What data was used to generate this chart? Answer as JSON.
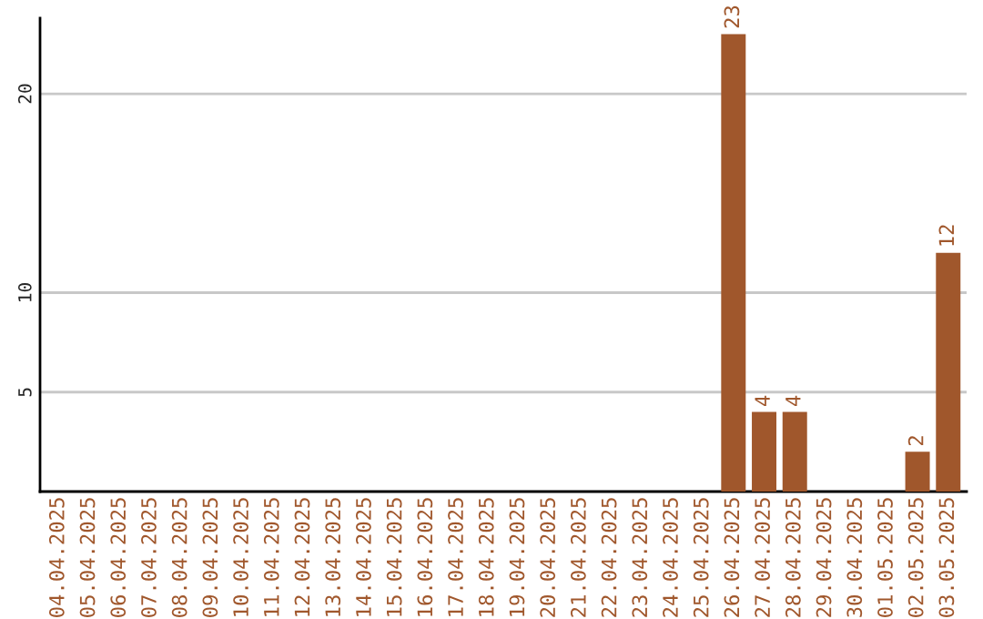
{
  "chart_data": {
    "type": "bar",
    "categories": [
      "04.04.2025",
      "05.04.2025",
      "06.04.2025",
      "07.04.2025",
      "08.04.2025",
      "09.04.2025",
      "10.04.2025",
      "11.04.2025",
      "12.04.2025",
      "13.04.2025",
      "14.04.2025",
      "15.04.2025",
      "16.04.2025",
      "17.04.2025",
      "18.04.2025",
      "19.04.2025",
      "20.04.2025",
      "21.04.2025",
      "22.04.2025",
      "23.04.2025",
      "24.04.2025",
      "25.04.2025",
      "26.04.2025",
      "27.04.2025",
      "28.04.2025",
      "29.04.2025",
      "30.04.2025",
      "01.05.2025",
      "02.05.2025",
      "03.05.2025"
    ],
    "values": [
      0,
      0,
      0,
      0,
      0,
      0,
      0,
      0,
      0,
      0,
      0,
      0,
      0,
      0,
      0,
      0,
      0,
      0,
      0,
      0,
      0,
      0,
      23,
      4,
      4,
      0,
      0,
      0,
      2,
      12
    ],
    "value_labels": [
      null,
      null,
      null,
      null,
      null,
      null,
      null,
      null,
      null,
      null,
      null,
      null,
      null,
      null,
      null,
      null,
      null,
      null,
      null,
      null,
      null,
      null,
      "23",
      "4",
      "4",
      null,
      null,
      null,
      "2",
      "12"
    ],
    "color": "#a0572c",
    "ylim": [
      0,
      23.8
    ],
    "yticks": [
      5,
      10,
      20
    ],
    "grid": "y",
    "legend": false
  }
}
